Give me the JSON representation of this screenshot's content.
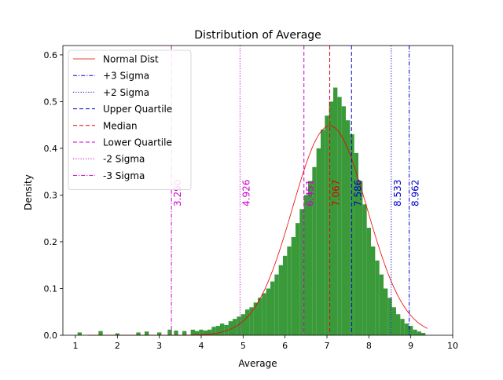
{
  "chart_data": {
    "type": "histogram",
    "title": "Distribution of Average",
    "xlabel": "Average",
    "ylabel": "Density",
    "xlim": [
      0.7,
      10.0
    ],
    "ylim": [
      0.0,
      0.62
    ],
    "x_ticks": [
      1,
      2,
      3,
      4,
      5,
      6,
      7,
      8,
      9,
      10
    ],
    "y_ticks": [
      0.0,
      0.1,
      0.2,
      0.3,
      0.4,
      0.5,
      0.6
    ],
    "x_tick_labels": [
      "1",
      "2",
      "3",
      "4",
      "5",
      "6",
      "7",
      "8",
      "9",
      "10"
    ],
    "y_tick_labels": [
      "0.0",
      "0.1",
      "0.2",
      "0.3",
      "0.4",
      "0.5",
      "0.6"
    ],
    "grid": false,
    "legend_position": "upper-left",
    "histogram": {
      "color": "#3a9a3a",
      "bins": [
        [
          1.1,
          0.006
        ],
        [
          1.6,
          0.009
        ],
        [
          2.0,
          0.004
        ],
        [
          2.5,
          0.006
        ],
        [
          2.7,
          0.008
        ],
        [
          3.0,
          0.006
        ],
        [
          3.25,
          0.012
        ],
        [
          3.4,
          0.01
        ],
        [
          3.6,
          0.009
        ],
        [
          3.8,
          0.012
        ],
        [
          3.9,
          0.009
        ],
        [
          4.0,
          0.012
        ],
        [
          4.1,
          0.01
        ],
        [
          4.2,
          0.012
        ],
        [
          4.3,
          0.018
        ],
        [
          4.4,
          0.02
        ],
        [
          4.5,
          0.025
        ],
        [
          4.6,
          0.022
        ],
        [
          4.7,
          0.03
        ],
        [
          4.8,
          0.035
        ],
        [
          4.9,
          0.04
        ],
        [
          5.0,
          0.045
        ],
        [
          5.1,
          0.055
        ],
        [
          5.2,
          0.06
        ],
        [
          5.3,
          0.07
        ],
        [
          5.4,
          0.08
        ],
        [
          5.5,
          0.09
        ],
        [
          5.6,
          0.1
        ],
        [
          5.7,
          0.115
        ],
        [
          5.8,
          0.13
        ],
        [
          5.9,
          0.15
        ],
        [
          6.0,
          0.17
        ],
        [
          6.1,
          0.19
        ],
        [
          6.2,
          0.21
        ],
        [
          6.3,
          0.24
        ],
        [
          6.4,
          0.27
        ],
        [
          6.5,
          0.3
        ],
        [
          6.6,
          0.33
        ],
        [
          6.7,
          0.36
        ],
        [
          6.8,
          0.4
        ],
        [
          6.9,
          0.44
        ],
        [
          7.0,
          0.47
        ],
        [
          7.1,
          0.5
        ],
        [
          7.2,
          0.53
        ],
        [
          7.3,
          0.51
        ],
        [
          7.4,
          0.49
        ],
        [
          7.5,
          0.46
        ],
        [
          7.6,
          0.43
        ],
        [
          7.7,
          0.39
        ],
        [
          7.8,
          0.33
        ],
        [
          7.9,
          0.28
        ],
        [
          8.0,
          0.23
        ],
        [
          8.1,
          0.19
        ],
        [
          8.2,
          0.16
        ],
        [
          8.3,
          0.13
        ],
        [
          8.4,
          0.1
        ],
        [
          8.5,
          0.08
        ],
        [
          8.6,
          0.06
        ],
        [
          8.7,
          0.045
        ],
        [
          8.8,
          0.035
        ],
        [
          8.9,
          0.025
        ],
        [
          9.0,
          0.02
        ],
        [
          9.1,
          0.012
        ],
        [
          9.2,
          0.008
        ],
        [
          9.3,
          0.005
        ]
      ]
    },
    "normal_curve": {
      "color": "#ee0000",
      "mean": 7.067,
      "std": 0.89,
      "x_range": [
        1.3,
        9.4
      ]
    },
    "vlines": [
      {
        "name": "+3 Sigma",
        "value": 8.962,
        "label": "8.962",
        "color": "#0000cc",
        "style": "dashdot"
      },
      {
        "name": "+2 Sigma",
        "value": 8.533,
        "label": "8.533",
        "color": "#0000cc",
        "style": "dotted"
      },
      {
        "name": "Upper Quartile",
        "value": 7.586,
        "label": "7.586",
        "color": "#0000cc",
        "style": "dashed"
      },
      {
        "name": "Median",
        "value": 7.067,
        "label": "7.067",
        "color": "#dd0000",
        "style": "dashed"
      },
      {
        "name": "Lower Quartile",
        "value": 6.451,
        "label": "6.451",
        "color": "#cc00cc",
        "style": "dashed"
      },
      {
        "name": "-2 Sigma",
        "value": 4.926,
        "label": "4.926",
        "color": "#cc00cc",
        "style": "dotted"
      },
      {
        "name": "-3 Sigma",
        "value": 3.29,
        "label": "3.290",
        "color": "#cc00cc",
        "style": "dashdot"
      }
    ],
    "legend": [
      {
        "label": "Normal Dist",
        "color": "#ee0000",
        "style": "solid"
      },
      {
        "label": "+3 Sigma",
        "color": "#0000cc",
        "style": "dashdot"
      },
      {
        "label": "+2 Sigma",
        "color": "#0000cc",
        "style": "dotted"
      },
      {
        "label": "Upper Quartile",
        "color": "#0000cc",
        "style": "dashed"
      },
      {
        "label": "Median",
        "color": "#dd0000",
        "style": "dashed"
      },
      {
        "label": "Lower Quartile",
        "color": "#cc00cc",
        "style": "dashed"
      },
      {
        "label": "-2 Sigma",
        "color": "#cc00cc",
        "style": "dotted"
      },
      {
        "label": "-3 Sigma",
        "color": "#cc00cc",
        "style": "dashdot"
      }
    ]
  }
}
